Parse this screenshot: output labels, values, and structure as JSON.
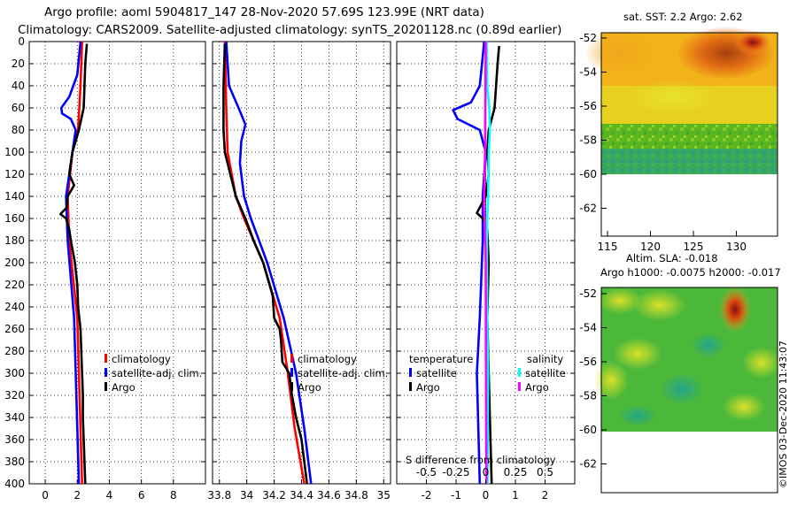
{
  "header": {
    "line1": "Argo profile: aoml 5904817_147 28-Nov-2020 57.69S 123.99E (NRT data)",
    "line2": "Climatology: CARS2009. Satellite-adjusted climatology: synTS_20201128.nc (0.89d earlier)"
  },
  "colors": {
    "climatology": "#ff0000",
    "satellite": "#0000ff",
    "argo": "#000000",
    "sat_salinity": "#00ffff",
    "argo_salinity": "#ff00ff"
  },
  "chart_data": [
    {
      "type": "line",
      "name": "temperature-profile",
      "xlim": [
        -1,
        10
      ],
      "ylim": [
        400,
        0
      ],
      "x_ticks": [
        0,
        2,
        4,
        6,
        8
      ],
      "y_ticks": [
        0,
        20,
        40,
        60,
        80,
        100,
        120,
        140,
        160,
        180,
        200,
        220,
        240,
        260,
        280,
        300,
        320,
        340,
        360,
        380,
        400
      ],
      "legend": [
        "climatology",
        "satellite-adj. clim.",
        "Argo"
      ],
      "series": [
        {
          "name": "climatology",
          "depth": [
            0,
            40,
            80,
            100,
            140,
            180,
            250,
            300,
            400
          ],
          "values": [
            2.3,
            2.2,
            2.05,
            1.7,
            1.4,
            1.5,
            2.0,
            2.1,
            2.3
          ]
        },
        {
          "name": "satellite-adj. clim.",
          "depth": [
            0,
            30,
            50,
            60,
            65,
            70,
            80,
            100,
            140,
            180,
            250,
            300,
            400
          ],
          "values": [
            2.2,
            2.0,
            1.5,
            1.0,
            1.05,
            1.6,
            1.9,
            1.7,
            1.3,
            1.4,
            1.8,
            1.9,
            2.1
          ]
        },
        {
          "name": "Argo",
          "depth": [
            2,
            20,
            40,
            60,
            80,
            100,
            120,
            130,
            140,
            150,
            156,
            160,
            170,
            180,
            200,
            220,
            240,
            260,
            280,
            300,
            320,
            340,
            360,
            380,
            400
          ],
          "values": [
            2.6,
            2.5,
            2.45,
            2.4,
            2.1,
            1.7,
            1.5,
            1.8,
            1.4,
            1.35,
            0.95,
            1.3,
            1.5,
            1.6,
            1.85,
            2.0,
            2.05,
            2.2,
            2.25,
            2.3,
            2.35,
            2.35,
            2.4,
            2.45,
            2.5
          ]
        }
      ]
    },
    {
      "type": "line",
      "name": "salinity-profile",
      "xlim": [
        33.75,
        35.05
      ],
      "ylim": [
        400,
        0
      ],
      "x_ticks": [
        33.8,
        34,
        34.2,
        34.4,
        34.6,
        34.8,
        35
      ],
      "legend": [
        "climatology",
        "satellite-adj. clim.",
        "Argo"
      ],
      "series": [
        {
          "name": "climatology",
          "depth": [
            0,
            60,
            100,
            140,
            160,
            200,
            250,
            300,
            350,
            400
          ],
          "values": [
            33.84,
            33.85,
            33.86,
            33.92,
            33.98,
            34.12,
            34.24,
            34.3,
            34.35,
            34.42
          ]
        },
        {
          "name": "satellite-adj. clim.",
          "depth": [
            0,
            40,
            60,
            75,
            90,
            110,
            140,
            160,
            200,
            250,
            300,
            350,
            400
          ],
          "values": [
            33.85,
            33.87,
            33.94,
            33.99,
            33.96,
            33.95,
            33.98,
            34.03,
            34.15,
            34.27,
            34.36,
            34.42,
            34.47
          ]
        },
        {
          "name": "Argo",
          "depth": [
            2,
            40,
            80,
            100,
            120,
            140,
            160,
            180,
            200,
            230,
            250,
            260,
            270,
            290,
            300,
            320,
            340,
            360,
            380,
            400
          ],
          "values": [
            33.84,
            33.83,
            33.83,
            33.84,
            33.88,
            33.92,
            33.99,
            34.05,
            34.12,
            34.19,
            34.2,
            34.24,
            34.25,
            34.26,
            34.31,
            34.33,
            34.36,
            34.4,
            34.42,
            34.44
          ]
        }
      ]
    },
    {
      "type": "line",
      "name": "difference-from-climatology",
      "xlim": [
        -3,
        3
      ],
      "ylim": [
        400,
        0
      ],
      "x_ticks": [
        -2,
        -1,
        0,
        1,
        2
      ],
      "x_ticks_secondary": [
        "-0.5",
        "-0.25",
        "0",
        "0.25",
        "0.5"
      ],
      "xlabel": "S difference from climatology",
      "legend_temperature": {
        "title": "temperature",
        "items": [
          "satellite",
          "Argo"
        ]
      },
      "legend_salinity": {
        "title": "salinity",
        "items": [
          "satellite",
          "Argo"
        ]
      },
      "series": [
        {
          "name": "temperature satellite",
          "depth": [
            0,
            40,
            55,
            62,
            70,
            80,
            100,
            140,
            180,
            250,
            300,
            400
          ],
          "values": [
            -0.05,
            -0.2,
            -0.5,
            -1.1,
            -0.95,
            -0.2,
            0,
            -0.1,
            -0.1,
            -0.2,
            -0.3,
            -0.2
          ]
        },
        {
          "name": "temperature Argo",
          "depth": [
            4,
            20,
            40,
            60,
            80,
            100,
            120,
            140,
            155,
            160,
            170,
            200,
            250,
            300,
            350,
            400
          ],
          "values": [
            0.45,
            0.4,
            0.35,
            0.3,
            0.1,
            0.05,
            0.1,
            0.0,
            -0.3,
            -0.1,
            0.05,
            0.1,
            0.05,
            0.1,
            0.15,
            0.2
          ]
        },
        {
          "name": "salinity satellite",
          "depth": [
            0,
            40,
            60,
            80,
            100,
            140,
            160,
            180,
            250,
            300,
            400
          ],
          "values": [
            0.03,
            0.05,
            0.12,
            0.14,
            0.1,
            0.08,
            0.05,
            0.04,
            0.05,
            0.08,
            0.06
          ]
        },
        {
          "name": "salinity Argo",
          "depth": [
            0,
            100,
            150,
            160,
            200,
            300,
            400
          ],
          "values": [
            0.0,
            -0.02,
            -0.06,
            -0.04,
            0.0,
            0.01,
            0.02
          ]
        }
      ]
    }
  ],
  "maps": {
    "sst_title": "sat. SST: 2.2 Argo: 2.62",
    "sla_title1": "Altim. SLA: -0.018",
    "sla_title2": "Argo h1000: -0.0075 h2000: -0.017",
    "lon_ticks": [
      "115",
      "120",
      "125",
      "130"
    ],
    "lat_ticks": [
      "-52",
      "-54",
      "-56",
      "-58",
      "-60",
      "-62"
    ]
  },
  "footer": "©IMOS 03-Dec-2020 11:43:07"
}
